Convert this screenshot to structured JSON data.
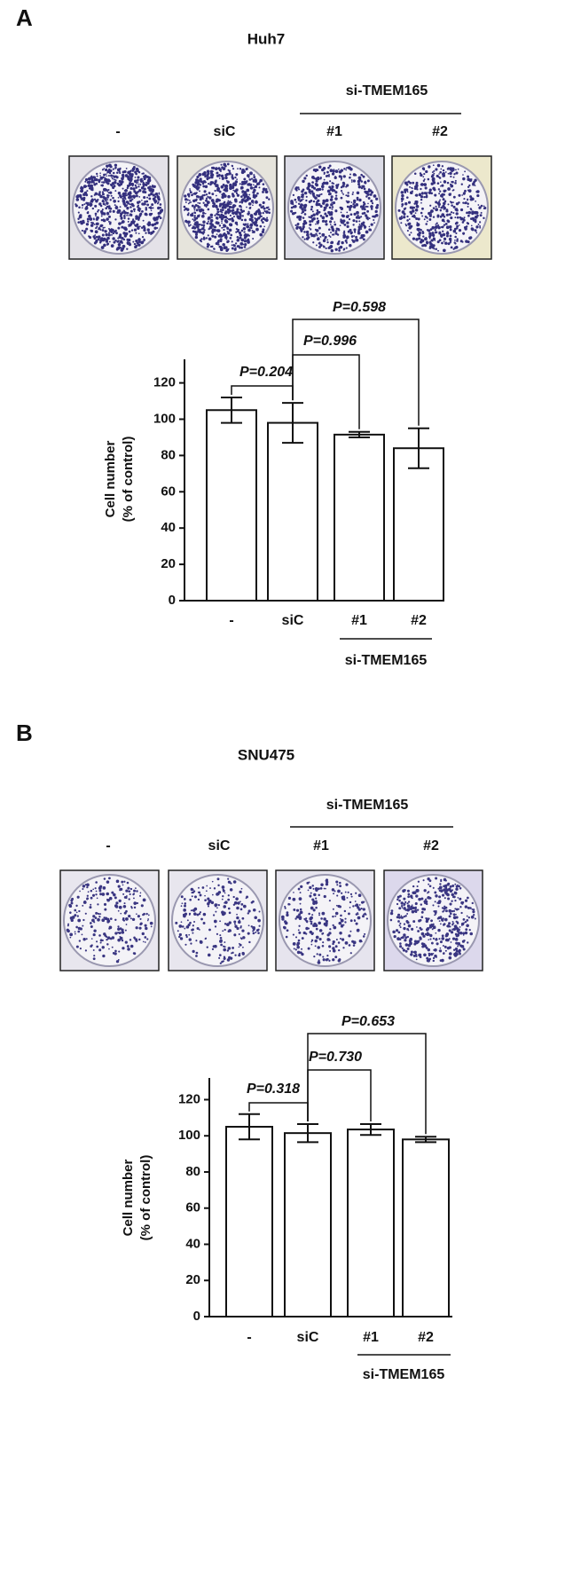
{
  "chart_data": [
    {
      "type": "bar",
      "panel_label": "A",
      "title": "Huh7",
      "group_label": "si-TMEM165",
      "categories": [
        "-",
        "siC",
        "#1",
        "#2"
      ],
      "values": [
        105,
        98,
        91.5,
        84
      ],
      "errors": [
        7,
        11,
        1.5,
        11
      ],
      "color": "#ffffff",
      "ylabel": [
        "Cell number",
        "(% of control)"
      ],
      "ylim": [
        0,
        133
      ],
      "yticks": [
        0,
        20,
        40,
        60,
        80,
        100,
        120
      ],
      "annotations": [
        "P=0.204",
        "P=0.996",
        "P=0.598"
      ]
    },
    {
      "type": "bar",
      "panel_label": "B",
      "title": "SNU475",
      "group_label": "si-TMEM165",
      "categories": [
        "-",
        "siC",
        "#1",
        "#2"
      ],
      "values": [
        105,
        101.5,
        103.5,
        98
      ],
      "errors": [
        7,
        5,
        3,
        1.5
      ],
      "color": "#ffffff",
      "ylabel": [
        "Cell number",
        "(% of control)"
      ],
      "ylim": [
        0,
        132
      ],
      "yticks": [
        0,
        20,
        40,
        60,
        80,
        100,
        120
      ],
      "annotations": [
        "P=0.318",
        "P=0.730",
        "P=0.653"
      ]
    }
  ]
}
